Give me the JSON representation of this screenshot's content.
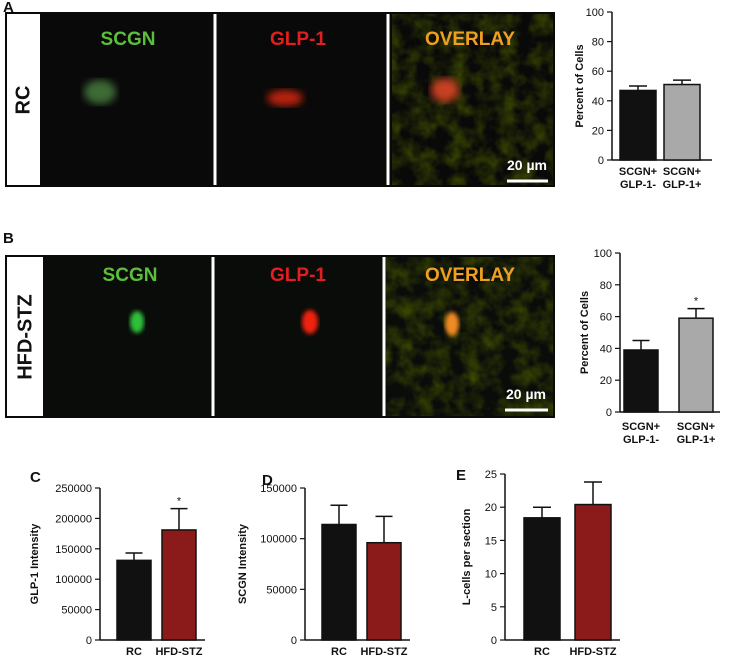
{
  "image_panels": [
    {
      "letter": "A",
      "condition": "RC",
      "channels": [
        "SCGN",
        "GLP-1",
        "OVERLAY"
      ],
      "scale_bar": "20 µm"
    },
    {
      "letter": "B",
      "condition": "HFD-STZ",
      "channels": [
        "SCGN",
        "GLP-1",
        "OVERLAY"
      ],
      "scale_bar": "20 µm"
    }
  ],
  "chart_data": [
    {
      "type": "bar",
      "y_label": "Percent of Cells",
      "categories": [
        [
          "SCGN+",
          "GLP-1-"
        ],
        [
          "SCGN+",
          "GLP-1+"
        ]
      ],
      "values": [
        47,
        51
      ],
      "errors": [
        3,
        3
      ],
      "colors": [
        "#111111",
        "#a9a9a9"
      ],
      "ylim": [
        0,
        100
      ],
      "yticks": [
        0,
        20,
        40,
        60,
        80,
        100
      ]
    },
    {
      "type": "bar",
      "y_label": "Percent of Cells",
      "categories": [
        [
          "SCGN+",
          "GLP-1-"
        ],
        [
          "SCGN+",
          "GLP-1+"
        ]
      ],
      "values": [
        39,
        59
      ],
      "errors": [
        6,
        6
      ],
      "significance": [
        null,
        "*"
      ],
      "colors": [
        "#111111",
        "#a9a9a9"
      ],
      "ylim": [
        0,
        100
      ],
      "yticks": [
        0,
        20,
        40,
        60,
        80,
        100
      ]
    },
    {
      "type": "bar",
      "panel": "C",
      "y_label": "GLP-1 Intensity",
      "categories": [
        [
          "RC"
        ],
        [
          "HFD-STZ"
        ]
      ],
      "values": [
        131000,
        181000
      ],
      "errors": [
        12000,
        35000
      ],
      "significance": [
        null,
        "*"
      ],
      "colors": [
        "#111111",
        "#8b1a1a"
      ],
      "ylim": [
        0,
        250000
      ],
      "yticks": [
        0,
        50000,
        100000,
        150000,
        200000,
        250000
      ]
    },
    {
      "type": "bar",
      "panel": "D",
      "y_label": "SCGN Intensity",
      "categories": [
        [
          "RC"
        ],
        [
          "HFD-STZ"
        ]
      ],
      "values": [
        114000,
        96000
      ],
      "errors": [
        19000,
        26000
      ],
      "colors": [
        "#111111",
        "#8b1a1a"
      ],
      "ylim": [
        0,
        150000
      ],
      "yticks": [
        0,
        50000,
        100000,
        150000
      ]
    },
    {
      "type": "bar",
      "panel": "E",
      "y_label": "L-cells per section",
      "categories": [
        [
          "RC"
        ],
        [
          "HFD-STZ"
        ]
      ],
      "values": [
        18.4,
        20.4
      ],
      "errors": [
        1.6,
        3.4
      ],
      "colors": [
        "#111111",
        "#8b1a1a"
      ],
      "ylim": [
        0,
        25
      ],
      "yticks": [
        0,
        5,
        10,
        15,
        20,
        25
      ]
    }
  ]
}
